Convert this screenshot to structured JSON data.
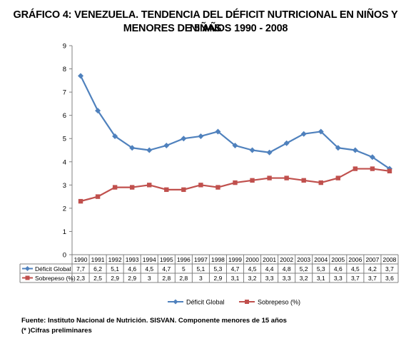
{
  "chart_data": {
    "type": "line",
    "title": "GRÁFICO 4: VENEZUELA. TENDENCIA DEL DÉFICIT NUTRICIONAL EN NIÑOS Y NIÑAS",
    "subtitle": "MENORES DE 5 AÑOS 1990 - 2008",
    "categories": [
      "1990",
      "1991",
      "1992",
      "1993",
      "1994",
      "1995",
      "1996",
      "1997",
      "1998",
      "1999",
      "2000",
      "2001",
      "2002",
      "2003",
      "2004",
      "2005",
      "2006",
      "2007",
      "2008"
    ],
    "series": [
      {
        "name": "Déficit Global",
        "color": "#4f81bd",
        "marker": "diamond",
        "values": [
          7.7,
          6.2,
          5.1,
          4.6,
          4.5,
          4.7,
          5,
          5.1,
          5.3,
          4.7,
          4.5,
          4.4,
          4.8,
          5.2,
          5.3,
          4.6,
          4.5,
          4.2,
          3.7
        ],
        "labels": [
          "7,7",
          "6,2",
          "5,1",
          "4,6",
          "4,5",
          "4,7",
          "5",
          "5,1",
          "5,3",
          "4,7",
          "4,5",
          "4,4",
          "4,8",
          "5,2",
          "5,3",
          "4,6",
          "4,5",
          "4,2",
          "3,7"
        ]
      },
      {
        "name": "Sobrepeso (%)",
        "color": "#c0504d",
        "marker": "square",
        "values": [
          2.3,
          2.5,
          2.9,
          2.9,
          3,
          2.8,
          2.8,
          3,
          2.9,
          3.1,
          3.2,
          3.3,
          3.3,
          3.2,
          3.1,
          3.3,
          3.7,
          3.7,
          3.6
        ],
        "labels": [
          "2,3",
          "2,5",
          "2,9",
          "2,9",
          "3",
          "2,8",
          "2,8",
          "3",
          "2,9",
          "3,1",
          "3,2",
          "3,3",
          "3,3",
          "3,2",
          "3,1",
          "3,3",
          "3,7",
          "3,7",
          "3,6"
        ]
      }
    ],
    "ylim": [
      0,
      9
    ],
    "yticks": [
      0,
      1,
      2,
      3,
      4,
      5,
      6,
      7,
      8,
      9
    ],
    "grid": false,
    "legend": "bottom"
  },
  "footer": {
    "source": "Fuente: Instituto Nacional de Nutrición. SISVAN. Componente menores de 15 años",
    "note": "(* )Cifras preliminares"
  }
}
